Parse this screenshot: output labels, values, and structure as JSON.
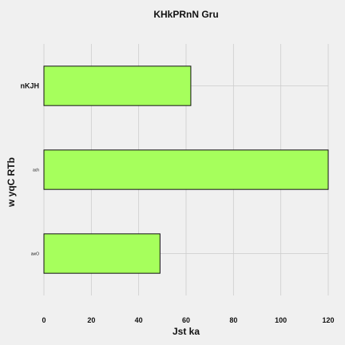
{
  "chart_data": {
    "type": "bar",
    "orientation": "horizontal",
    "title": "KHkPRnN Gru",
    "xlabel": "Jst ka",
    "ylabel": "w  yqC RTb",
    "categories": [
      "nKJH",
      "ach",
      "awO"
    ],
    "values": [
      62,
      120,
      49
    ],
    "xlim": [
      0,
      120
    ],
    "xticks": [
      0,
      20,
      40,
      60,
      80,
      100,
      120
    ],
    "grid": true,
    "colors": {
      "bar_fill": "#a6ff5c",
      "bar_edge": "#111111",
      "background": "#f0f0f0",
      "grid": "#cccccc"
    }
  }
}
